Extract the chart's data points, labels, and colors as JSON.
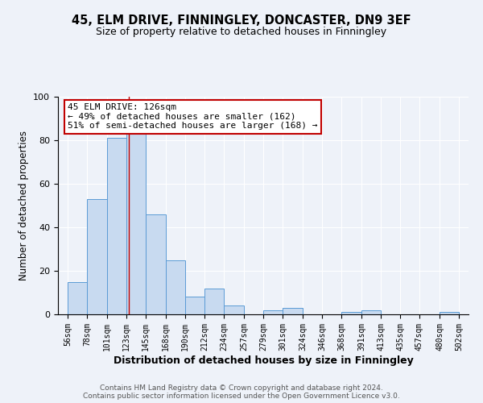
{
  "title": "45, ELM DRIVE, FINNINGLEY, DONCASTER, DN9 3EF",
  "subtitle": "Size of property relative to detached houses in Finningley",
  "xlabel": "Distribution of detached houses by size in Finningley",
  "ylabel": "Number of detached properties",
  "bar_left_edges": [
    56,
    78,
    101,
    123,
    145,
    168,
    190,
    212,
    234,
    257,
    279,
    301,
    324,
    346,
    368,
    391,
    413,
    435,
    457,
    480
  ],
  "bar_widths": [
    22,
    23,
    22,
    22,
    23,
    22,
    22,
    22,
    23,
    22,
    22,
    23,
    22,
    22,
    23,
    22,
    22,
    22,
    23,
    22
  ],
  "bar_heights": [
    15,
    53,
    81,
    85,
    46,
    25,
    8,
    12,
    4,
    0,
    2,
    3,
    0,
    0,
    1,
    2,
    0,
    0,
    0,
    1
  ],
  "tick_labels": [
    "56sqm",
    "78sqm",
    "101sqm",
    "123sqm",
    "145sqm",
    "168sqm",
    "190sqm",
    "212sqm",
    "234sqm",
    "257sqm",
    "279sqm",
    "301sqm",
    "324sqm",
    "346sqm",
    "368sqm",
    "391sqm",
    "413sqm",
    "435sqm",
    "457sqm",
    "480sqm",
    "502sqm"
  ],
  "tick_positions": [
    56,
    78,
    101,
    123,
    145,
    168,
    190,
    212,
    234,
    257,
    279,
    301,
    324,
    346,
    368,
    391,
    413,
    435,
    457,
    480,
    502
  ],
  "bar_color": "#c8daf0",
  "bar_edge_color": "#5b9bd5",
  "marker_x": 126,
  "marker_color": "#c00000",
  "ylim": [
    0,
    100
  ],
  "xlim": [
    45,
    513
  ],
  "annotation_title": "45 ELM DRIVE: 126sqm",
  "annotation_line1": "← 49% of detached houses are smaller (162)",
  "annotation_line2": "51% of semi-detached houses are larger (168) →",
  "annotation_box_color": "#c00000",
  "background_color": "#eef2f9",
  "plot_bg_color": "#eef2f9",
  "footer1": "Contains HM Land Registry data © Crown copyright and database right 2024.",
  "footer2": "Contains public sector information licensed under the Open Government Licence v3.0.",
  "title_fontsize": 10.5,
  "subtitle_fontsize": 9,
  "xlabel_fontsize": 9,
  "ylabel_fontsize": 8.5,
  "tick_fontsize": 7,
  "annotation_fontsize": 8,
  "footer_fontsize": 6.5
}
